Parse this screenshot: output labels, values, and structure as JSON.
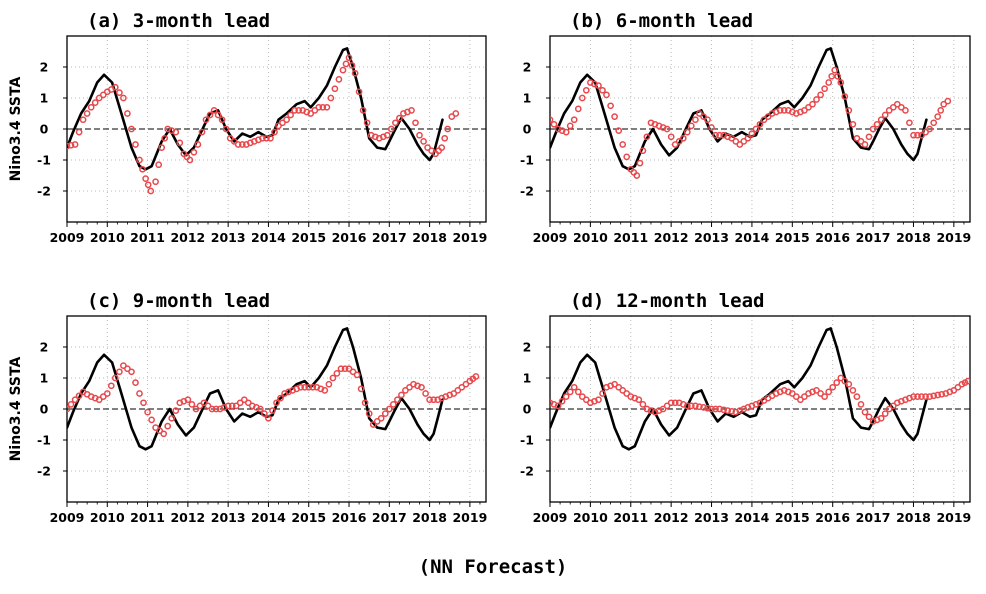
{
  "figure": {
    "caption": "(NN Forecast)",
    "colors": {
      "observed": "#000000",
      "forecast": "#e8484b",
      "zero_line": "#000000",
      "grid": "#bbbbbb"
    }
  },
  "chart_data": [
    {
      "type": "line",
      "title": "(a) 3-month lead",
      "ylabel": "Nino3.4 SSTA",
      "xlabel": "",
      "xlim": [
        2009,
        2019.4
      ],
      "ylim": [
        -3,
        3
      ],
      "xticks": [
        "2009",
        "2010",
        "2011",
        "2012",
        "2013",
        "2014",
        "2015",
        "2016",
        "2017",
        "2018",
        "2019"
      ],
      "yticks": [
        "-2",
        "-1",
        "0",
        "1",
        "2"
      ],
      "grid": true,
      "zero_line": true,
      "series": [
        {
          "style": "line",
          "x": [
            2009.0,
            2009.15,
            2009.35,
            2009.55,
            2009.75,
            2009.92,
            2010.12,
            2010.35,
            2010.6,
            2010.8,
            2010.95,
            2011.1,
            2011.35,
            2011.55,
            2011.75,
            2011.95,
            2012.15,
            2012.4,
            2012.55,
            2012.75,
            2012.95,
            2013.15,
            2013.35,
            2013.55,
            2013.75,
            2013.95,
            2014.1,
            2014.25,
            2014.45,
            2014.7,
            2014.9,
            2015.05,
            2015.25,
            2015.45,
            2015.65,
            2015.85,
            2015.95,
            2016.1,
            2016.3,
            2016.5,
            2016.7,
            2016.9,
            2017.0,
            2017.15,
            2017.3,
            2017.5,
            2017.7,
            2017.85,
            2018.0,
            2018.1,
            2018.2,
            2018.32
          ],
          "values": [
            -0.6,
            -0.1,
            0.5,
            0.9,
            1.5,
            1.75,
            1.5,
            0.5,
            -0.6,
            -1.2,
            -1.3,
            -1.2,
            -0.4,
            0.0,
            -0.5,
            -0.85,
            -0.6,
            0.1,
            0.5,
            0.6,
            0.0,
            -0.4,
            -0.15,
            -0.25,
            -0.1,
            -0.25,
            -0.2,
            0.3,
            0.5,
            0.8,
            0.9,
            0.7,
            1.0,
            1.4,
            2.0,
            2.55,
            2.6,
            2.0,
            1.0,
            -0.3,
            -0.6,
            -0.65,
            -0.4,
            0.0,
            0.35,
            0.0,
            -0.5,
            -0.8,
            -1.0,
            -0.8,
            -0.3,
            0.3
          ]
        },
        {
          "style": "markers",
          "x": [
            2009.0,
            2009.2,
            2009.4,
            2009.6,
            2009.8,
            2010.0,
            2010.2,
            2010.4,
            2010.6,
            2010.8,
            2010.95,
            2011.08,
            2011.2,
            2011.35,
            2011.5,
            2011.7,
            2011.9,
            2012.05,
            2012.25,
            2012.45,
            2012.65,
            2012.85,
            2013.05,
            2013.25,
            2013.45,
            2013.65,
            2013.85,
            2014.05,
            2014.25,
            2014.45,
            2014.65,
            2014.85,
            2015.05,
            2015.25,
            2015.45,
            2015.65,
            2015.85,
            2016.0,
            2016.15,
            2016.35,
            2016.55,
            2016.75,
            2016.95,
            2017.15,
            2017.35,
            2017.55,
            2017.75,
            2017.95,
            2018.15,
            2018.3,
            2018.45,
            2018.55,
            2018.65
          ],
          "values": [
            -0.55,
            -0.5,
            0.3,
            0.7,
            1.0,
            1.2,
            1.35,
            1.0,
            0.0,
            -1.0,
            -1.6,
            -2.0,
            -1.7,
            -0.6,
            0.0,
            -0.1,
            -0.8,
            -1.0,
            -0.5,
            0.3,
            0.6,
            0.3,
            -0.3,
            -0.5,
            -0.5,
            -0.4,
            -0.3,
            -0.3,
            0.1,
            0.3,
            0.6,
            0.6,
            0.5,
            0.7,
            0.7,
            1.3,
            1.9,
            2.3,
            1.8,
            0.6,
            -0.2,
            -0.3,
            -0.2,
            0.2,
            0.5,
            0.6,
            -0.2,
            -0.6,
            -0.8,
            -0.6,
            0.0,
            0.4,
            0.5
          ]
        }
      ]
    },
    {
      "type": "line",
      "title": "(b) 6-month lead",
      "ylabel": "",
      "xlabel": "",
      "xlim": [
        2009,
        2019.4
      ],
      "ylim": [
        -3,
        3
      ],
      "xticks": [
        "2009",
        "2010",
        "2011",
        "2012",
        "2013",
        "2014",
        "2015",
        "2016",
        "2017",
        "2018",
        "2019"
      ],
      "yticks": [
        "-2",
        "-1",
        "0",
        "1",
        "2"
      ],
      "grid": true,
      "zero_line": true,
      "series": [
        {
          "style": "line",
          "x": [
            2009.0,
            2009.15,
            2009.35,
            2009.55,
            2009.75,
            2009.92,
            2010.12,
            2010.35,
            2010.6,
            2010.8,
            2010.95,
            2011.1,
            2011.35,
            2011.55,
            2011.75,
            2011.95,
            2012.15,
            2012.4,
            2012.55,
            2012.75,
            2012.95,
            2013.15,
            2013.35,
            2013.55,
            2013.75,
            2013.95,
            2014.1,
            2014.25,
            2014.45,
            2014.7,
            2014.9,
            2015.05,
            2015.25,
            2015.45,
            2015.65,
            2015.85,
            2015.95,
            2016.1,
            2016.3,
            2016.5,
            2016.7,
            2016.9,
            2017.0,
            2017.15,
            2017.3,
            2017.5,
            2017.7,
            2017.85,
            2018.0,
            2018.1,
            2018.2,
            2018.32
          ],
          "values": [
            -0.6,
            -0.1,
            0.5,
            0.9,
            1.5,
            1.75,
            1.5,
            0.5,
            -0.6,
            -1.2,
            -1.3,
            -1.2,
            -0.4,
            0.0,
            -0.5,
            -0.85,
            -0.6,
            0.1,
            0.5,
            0.6,
            0.0,
            -0.4,
            -0.15,
            -0.25,
            -0.1,
            -0.25,
            -0.2,
            0.3,
            0.5,
            0.8,
            0.9,
            0.7,
            1.0,
            1.4,
            2.0,
            2.55,
            2.6,
            2.0,
            1.0,
            -0.3,
            -0.6,
            -0.65,
            -0.4,
            0.0,
            0.35,
            0.0,
            -0.5,
            -0.8,
            -1.0,
            -0.8,
            -0.3,
            0.3
          ]
        },
        {
          "style": "markers",
          "x": [
            2009.0,
            2009.2,
            2009.4,
            2009.6,
            2009.8,
            2010.0,
            2010.2,
            2010.4,
            2010.6,
            2010.8,
            2011.0,
            2011.15,
            2011.3,
            2011.5,
            2011.7,
            2011.9,
            2012.1,
            2012.3,
            2012.5,
            2012.7,
            2012.9,
            2013.1,
            2013.3,
            2013.5,
            2013.7,
            2013.9,
            2014.1,
            2014.3,
            2014.5,
            2014.7,
            2014.9,
            2015.1,
            2015.3,
            2015.5,
            2015.7,
            2015.9,
            2016.05,
            2016.2,
            2016.4,
            2016.6,
            2016.8,
            2017.0,
            2017.2,
            2017.4,
            2017.6,
            2017.8,
            2018.0,
            2018.2,
            2018.4,
            2018.6,
            2018.75,
            2018.85
          ],
          "values": [
            0.3,
            0.0,
            -0.1,
            0.3,
            1.0,
            1.5,
            1.4,
            1.1,
            0.4,
            -0.5,
            -1.3,
            -1.5,
            -0.7,
            0.2,
            0.1,
            0.0,
            -0.5,
            -0.3,
            0.1,
            0.5,
            0.3,
            -0.2,
            -0.2,
            -0.3,
            -0.5,
            -0.3,
            0.0,
            0.3,
            0.5,
            0.6,
            0.6,
            0.5,
            0.6,
            0.8,
            1.1,
            1.5,
            1.9,
            1.5,
            0.6,
            -0.3,
            -0.5,
            0.0,
            0.3,
            0.6,
            0.8,
            0.6,
            -0.2,
            -0.2,
            0.0,
            0.4,
            0.8,
            0.9
          ]
        }
      ]
    },
    {
      "type": "line",
      "title": "(c) 9-month lead",
      "ylabel": "Nino3.4 SSTA",
      "xlabel": "",
      "xlim": [
        2009,
        2019.4
      ],
      "ylim": [
        -3,
        3
      ],
      "xticks": [
        "2009",
        "2010",
        "2011",
        "2012",
        "2013",
        "2014",
        "2015",
        "2016",
        "2017",
        "2018",
        "2019"
      ],
      "yticks": [
        "-2",
        "-1",
        "0",
        "1",
        "2"
      ],
      "grid": true,
      "zero_line": true,
      "series": [
        {
          "style": "line",
          "x": [
            2009.0,
            2009.15,
            2009.35,
            2009.55,
            2009.75,
            2009.92,
            2010.12,
            2010.35,
            2010.6,
            2010.8,
            2010.95,
            2011.1,
            2011.35,
            2011.55,
            2011.75,
            2011.95,
            2012.15,
            2012.4,
            2012.55,
            2012.75,
            2012.95,
            2013.15,
            2013.35,
            2013.55,
            2013.75,
            2013.95,
            2014.1,
            2014.25,
            2014.45,
            2014.7,
            2014.9,
            2015.05,
            2015.25,
            2015.45,
            2015.65,
            2015.85,
            2015.95,
            2016.1,
            2016.3,
            2016.5,
            2016.7,
            2016.9,
            2017.0,
            2017.15,
            2017.3,
            2017.5,
            2017.7,
            2017.85,
            2018.0,
            2018.1,
            2018.2,
            2018.32
          ],
          "values": [
            -0.6,
            -0.1,
            0.5,
            0.9,
            1.5,
            1.75,
            1.5,
            0.5,
            -0.6,
            -1.2,
            -1.3,
            -1.2,
            -0.4,
            0.0,
            -0.5,
            -0.85,
            -0.6,
            0.1,
            0.5,
            0.6,
            0.0,
            -0.4,
            -0.15,
            -0.25,
            -0.1,
            -0.25,
            -0.2,
            0.3,
            0.5,
            0.8,
            0.9,
            0.7,
            1.0,
            1.4,
            2.0,
            2.55,
            2.6,
            2.0,
            1.0,
            -0.3,
            -0.6,
            -0.65,
            -0.4,
            0.0,
            0.35,
            0.0,
            -0.5,
            -0.8,
            -1.0,
            -0.8,
            -0.3,
            0.3
          ]
        },
        {
          "style": "markers",
          "x": [
            2009.0,
            2009.2,
            2009.4,
            2009.6,
            2009.8,
            2010.0,
            2010.2,
            2010.4,
            2010.6,
            2010.8,
            2011.0,
            2011.2,
            2011.4,
            2011.6,
            2011.8,
            2012.0,
            2012.2,
            2012.4,
            2012.6,
            2012.8,
            2013.0,
            2013.2,
            2013.4,
            2013.6,
            2013.8,
            2014.0,
            2014.2,
            2014.4,
            2014.6,
            2014.8,
            2015.0,
            2015.2,
            2015.4,
            2015.6,
            2015.8,
            2016.0,
            2016.2,
            2016.4,
            2016.6,
            2016.8,
            2017.0,
            2017.2,
            2017.4,
            2017.6,
            2017.8,
            2018.0,
            2018.2,
            2018.4,
            2018.6,
            2018.8,
            2019.0,
            2019.15
          ],
          "values": [
            0.0,
            0.3,
            0.55,
            0.4,
            0.3,
            0.5,
            1.0,
            1.4,
            1.2,
            0.5,
            -0.1,
            -0.6,
            -0.8,
            -0.3,
            0.2,
            0.3,
            0.0,
            0.2,
            0.0,
            0.0,
            0.1,
            0.1,
            0.3,
            0.1,
            0.0,
            -0.3,
            0.2,
            0.5,
            0.6,
            0.7,
            0.7,
            0.7,
            0.6,
            1.0,
            1.3,
            1.3,
            1.1,
            0.2,
            -0.5,
            -0.3,
            0.0,
            0.3,
            0.6,
            0.8,
            0.7,
            0.3,
            0.3,
            0.4,
            0.5,
            0.7,
            0.9,
            1.05
          ]
        }
      ]
    },
    {
      "type": "line",
      "title": "(d) 12-month lead",
      "ylabel": "",
      "xlabel": "",
      "xlim": [
        2009,
        2019.4
      ],
      "ylim": [
        -3,
        3
      ],
      "xticks": [
        "2009",
        "2010",
        "2011",
        "2012",
        "2013",
        "2014",
        "2015",
        "2016",
        "2017",
        "2018",
        "2019"
      ],
      "yticks": [
        "-2",
        "-1",
        "0",
        "1",
        "2"
      ],
      "grid": true,
      "zero_line": true,
      "series": [
        {
          "style": "line",
          "x": [
            2009.0,
            2009.15,
            2009.35,
            2009.55,
            2009.75,
            2009.92,
            2010.12,
            2010.35,
            2010.6,
            2010.8,
            2010.95,
            2011.1,
            2011.35,
            2011.55,
            2011.75,
            2011.95,
            2012.15,
            2012.4,
            2012.55,
            2012.75,
            2012.95,
            2013.15,
            2013.35,
            2013.55,
            2013.75,
            2013.95,
            2014.1,
            2014.25,
            2014.45,
            2014.7,
            2014.9,
            2015.05,
            2015.25,
            2015.45,
            2015.65,
            2015.85,
            2015.95,
            2016.1,
            2016.3,
            2016.5,
            2016.7,
            2016.9,
            2017.0,
            2017.15,
            2017.3,
            2017.5,
            2017.7,
            2017.85,
            2018.0,
            2018.1,
            2018.2,
            2018.32
          ],
          "values": [
            -0.6,
            -0.1,
            0.5,
            0.9,
            1.5,
            1.75,
            1.5,
            0.5,
            -0.6,
            -1.2,
            -1.3,
            -1.2,
            -0.4,
            0.0,
            -0.5,
            -0.85,
            -0.6,
            0.1,
            0.5,
            0.6,
            0.0,
            -0.4,
            -0.15,
            -0.25,
            -0.1,
            -0.25,
            -0.2,
            0.3,
            0.5,
            0.8,
            0.9,
            0.7,
            1.0,
            1.4,
            2.0,
            2.55,
            2.6,
            2.0,
            1.0,
            -0.3,
            -0.6,
            -0.65,
            -0.4,
            0.0,
            0.35,
            0.0,
            -0.5,
            -0.8,
            -1.0,
            -0.8,
            -0.3,
            0.3
          ]
        },
        {
          "style": "markers",
          "x": [
            2009.0,
            2009.2,
            2009.4,
            2009.6,
            2009.8,
            2010.0,
            2010.2,
            2010.4,
            2010.6,
            2010.8,
            2011.0,
            2011.2,
            2011.4,
            2011.6,
            2011.8,
            2012.0,
            2012.2,
            2012.4,
            2012.6,
            2012.8,
            2013.0,
            2013.2,
            2013.4,
            2013.6,
            2013.8,
            2014.0,
            2014.2,
            2014.4,
            2014.6,
            2014.8,
            2015.0,
            2015.2,
            2015.4,
            2015.6,
            2015.8,
            2016.0,
            2016.2,
            2016.4,
            2016.6,
            2016.8,
            2017.0,
            2017.2,
            2017.4,
            2017.6,
            2017.8,
            2018.0,
            2018.2,
            2018.4,
            2018.6,
            2018.8,
            2019.0,
            2019.2,
            2019.35
          ],
          "values": [
            0.2,
            0.1,
            0.4,
            0.7,
            0.4,
            0.2,
            0.3,
            0.7,
            0.8,
            0.6,
            0.4,
            0.3,
            0.0,
            -0.1,
            0.0,
            0.2,
            0.2,
            0.1,
            0.1,
            0.05,
            0.0,
            0.0,
            -0.05,
            -0.1,
            0.0,
            0.1,
            0.2,
            0.35,
            0.5,
            0.6,
            0.5,
            0.3,
            0.5,
            0.6,
            0.4,
            0.7,
            1.0,
            0.8,
            0.4,
            -0.1,
            -0.4,
            -0.3,
            0.0,
            0.2,
            0.3,
            0.4,
            0.4,
            0.4,
            0.45,
            0.5,
            0.6,
            0.8,
            0.9
          ]
        }
      ]
    }
  ]
}
